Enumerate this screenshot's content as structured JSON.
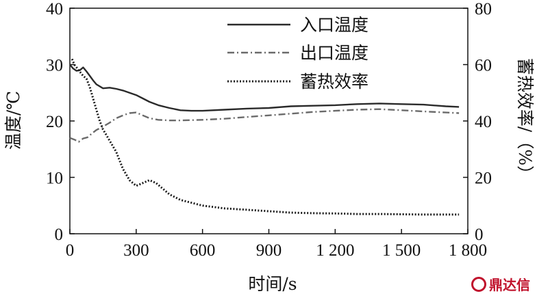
{
  "chart_data": {
    "type": "line",
    "xlabel": "时间/s",
    "ylabel_left": "温度/℃",
    "ylabel_right": "蓄热效率/（%）",
    "xlim": [
      0,
      1800
    ],
    "ylim_left": [
      0,
      40
    ],
    "ylim_right": [
      0,
      80
    ],
    "x_ticks": [
      0,
      300,
      600,
      900,
      1200,
      1500,
      1800
    ],
    "x_tick_labels": [
      "0",
      "300",
      "600",
      "900",
      "1 200",
      "1 500",
      "1 800"
    ],
    "y_left_ticks": [
      0,
      10,
      20,
      30,
      40
    ],
    "y_right_ticks": [
      0,
      20,
      40,
      60,
      80
    ],
    "legend_position": "top-right",
    "series": [
      {
        "name": "入口温度",
        "axis": "left",
        "style": "solid",
        "color": "#2a2a2a",
        "x": [
          0,
          15,
          30,
          45,
          60,
          75,
          90,
          105,
          120,
          150,
          180,
          210,
          240,
          270,
          300,
          330,
          360,
          400,
          450,
          500,
          550,
          600,
          700,
          800,
          900,
          1000,
          1100,
          1200,
          1300,
          1400,
          1500,
          1600,
          1700,
          1760
        ],
        "y": [
          30.0,
          29.3,
          28.9,
          29.0,
          29.5,
          28.8,
          28.0,
          27.2,
          26.5,
          25.8,
          25.9,
          25.7,
          25.4,
          25.0,
          24.6,
          24.0,
          23.4,
          22.8,
          22.3,
          21.9,
          21.8,
          21.8,
          22.0,
          22.2,
          22.3,
          22.6,
          22.7,
          22.8,
          23.0,
          23.1,
          23.0,
          22.9,
          22.6,
          22.5
        ]
      },
      {
        "name": "出口温度",
        "axis": "left",
        "style": "dashdot",
        "color": "#6a6a6a",
        "x": [
          0,
          20,
          40,
          60,
          80,
          100,
          120,
          150,
          180,
          210,
          240,
          270,
          300,
          330,
          360,
          400,
          450,
          500,
          600,
          700,
          800,
          900,
          1000,
          1100,
          1200,
          1300,
          1400,
          1500,
          1600,
          1700,
          1760
        ],
        "y": [
          17.0,
          16.7,
          16.3,
          16.9,
          17.1,
          17.8,
          18.4,
          19.0,
          19.7,
          20.5,
          21.0,
          21.4,
          21.5,
          21.0,
          20.5,
          20.2,
          20.1,
          20.1,
          20.2,
          20.4,
          20.7,
          21.0,
          21.3,
          21.6,
          21.8,
          22.0,
          22.1,
          21.9,
          21.7,
          21.5,
          21.4
        ]
      },
      {
        "name": "蓄热效率",
        "axis": "right",
        "style": "dotted",
        "color": "#1a1a1a",
        "x": [
          10,
          20,
          30,
          40,
          50,
          60,
          75,
          90,
          105,
          120,
          135,
          150,
          165,
          180,
          195,
          210,
          225,
          240,
          255,
          270,
          285,
          300,
          330,
          360,
          390,
          420,
          450,
          500,
          550,
          600,
          700,
          800,
          900,
          1000,
          1100,
          1200,
          1300,
          1400,
          1500,
          1600,
          1700,
          1760
        ],
        "y": [
          62,
          60,
          59,
          58,
          57,
          56,
          55,
          52,
          48,
          44,
          40,
          37,
          35,
          33,
          31,
          29,
          26,
          23,
          21,
          19,
          18,
          17,
          18,
          19,
          18,
          16,
          14,
          12,
          11,
          10,
          9,
          8.5,
          8,
          7.5,
          7.3,
          7.2,
          7.0,
          7.0,
          6.9,
          6.8,
          6.8,
          6.8
        ]
      }
    ]
  },
  "watermark": {
    "text": "鼎达信",
    "color": "#c0122c"
  }
}
